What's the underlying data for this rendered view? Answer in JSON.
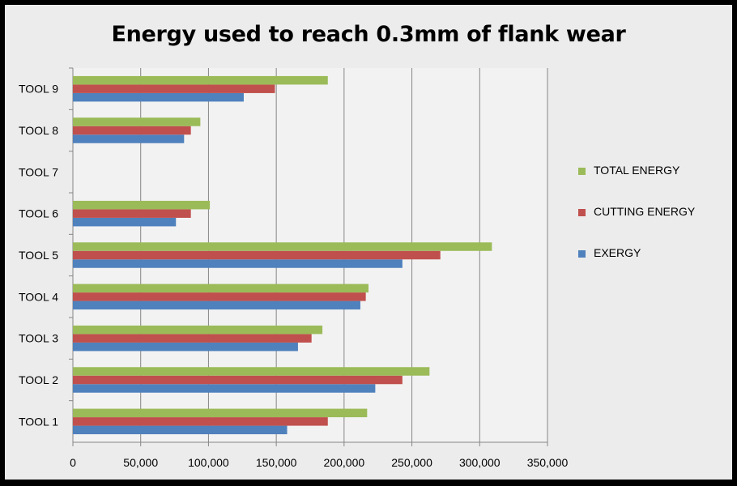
{
  "chart_data": {
    "type": "bar",
    "orientation": "horizontal",
    "title": "Energy used to reach 0.3mm of flank wear",
    "xlabel": "",
    "ylabel": "",
    "categories": [
      "TOOL 1",
      "TOOL 2",
      "TOOL 3",
      "TOOL 4",
      "TOOL 5",
      "TOOL 6",
      "TOOL 7",
      "TOOL 8",
      "TOOL 9"
    ],
    "series": [
      {
        "name": "EXERGY",
        "color": "#4f81bd",
        "values": [
          158000,
          223000,
          166000,
          212000,
          243000,
          76000,
          null,
          82000,
          126000
        ]
      },
      {
        "name": "CUTTING ENERGY",
        "color": "#c0504d",
        "values": [
          188000,
          243000,
          176000,
          216000,
          271000,
          87000,
          null,
          87000,
          149000
        ]
      },
      {
        "name": "TOTAL ENERGY",
        "color": "#9bbb59",
        "values": [
          217000,
          263000,
          184000,
          218000,
          309000,
          101000,
          null,
          94000,
          188000
        ]
      }
    ],
    "xlim": [
      0,
      350000
    ],
    "xticks": [
      "0",
      "50,000",
      "100,000",
      "150,000",
      "200,000",
      "250,000",
      "300,000",
      "350,000"
    ],
    "grid": true,
    "legend_position": "right"
  }
}
